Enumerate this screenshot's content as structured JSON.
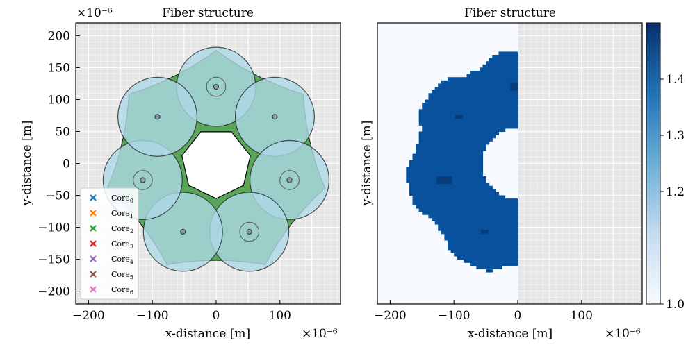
{
  "figure": {
    "left_panel": {
      "title": "Fiber structure",
      "xlabel": "x-distance [m]",
      "ylabel": "y-distance [m]",
      "x_scale_label": "×10⁻⁶",
      "y_scale_label": "×10⁻⁶",
      "xticks": [
        -200,
        -100,
        0,
        100
      ],
      "yticks": [
        200,
        150,
        100,
        50,
        0,
        -50,
        -100,
        -150,
        -200
      ]
    },
    "right_panel": {
      "title": "Fiber structure",
      "xlabel": "x-distance [m]",
      "ylabel": "y-distance [m]",
      "x_scale_label": "×10⁻⁶",
      "xticks": [
        -200,
        -100,
        0,
        100
      ],
      "colorbar_ticks": [
        "1.4",
        "1.3",
        "1.2",
        "1.0"
      ]
    }
  },
  "colors": {
    "background_grid": "#e6e6e6",
    "cladding_green": "#5aa55a",
    "core_blue": "#add8e6",
    "index_high": "#08519c",
    "index_low": "#f7fbff"
  },
  "chart_data": [
    {
      "type": "scatter",
      "title": "Fiber structure",
      "xlabel": "x-distance [m]",
      "ylabel": "y-distance [m]",
      "xlim": [
        -0.00022,
        0.000195
      ],
      "ylim": [
        -0.00022,
        0.00022
      ],
      "grid": true,
      "legend_position": "lower-left",
      "hollow_core_radius": 5.5e-05,
      "capillary_radius": 6.2e-05,
      "series": [
        {
          "name": "Core_0",
          "color": "#1f77b4",
          "x": [
            0
          ],
          "y": [
            0.00012
          ],
          "inner_ring_radius": 1.5e-05
        },
        {
          "name": "Core_1",
          "color": "#ff7f0e",
          "x": [
            9.2e-05
          ],
          "y": [
            7.3e-05
          ],
          "inner_ring_radius": 0
        },
        {
          "name": "Core_2",
          "color": "#2ca02c",
          "x": [
            0.000115
          ],
          "y": [
            -2.6e-05
          ],
          "inner_ring_radius": 1.5e-05
        },
        {
          "name": "Core_3",
          "color": "#d62728",
          "x": [
            5.2e-05
          ],
          "y": [
            -0.000107
          ],
          "inner_ring_radius": 1.5e-05
        },
        {
          "name": "Core_4",
          "color": "#9467bd",
          "x": [
            -5.2e-05
          ],
          "y": [
            -0.000107
          ],
          "inner_ring_radius": 0
        },
        {
          "name": "Core_5",
          "color": "#8c564b",
          "x": [
            -0.000115
          ],
          "y": [
            -2.6e-05
          ],
          "inner_ring_radius": 1.5e-05
        },
        {
          "name": "Core_6",
          "color": "#e377c2",
          "x": [
            -9.2e-05
          ],
          "y": [
            7.3e-05
          ],
          "inner_ring_radius": 0
        }
      ]
    },
    {
      "type": "heatmap",
      "title": "Fiber structure",
      "xlabel": "x-distance [m]",
      "ylabel": "y-distance [m]",
      "xlim": [
        -0.00022,
        0.000195
      ],
      "ylim": [
        -0.00022,
        0.00022
      ],
      "colorbar_range": [
        1.0,
        1.5
      ],
      "colorbar_ticks": [
        1.0,
        1.2,
        1.3,
        1.4
      ],
      "cladding_index": 1.44,
      "background_index": 1.0,
      "core_index": 1.46,
      "grid_step": 5e-06,
      "shown_x_range": [
        -0.00022,
        0
      ]
    }
  ]
}
